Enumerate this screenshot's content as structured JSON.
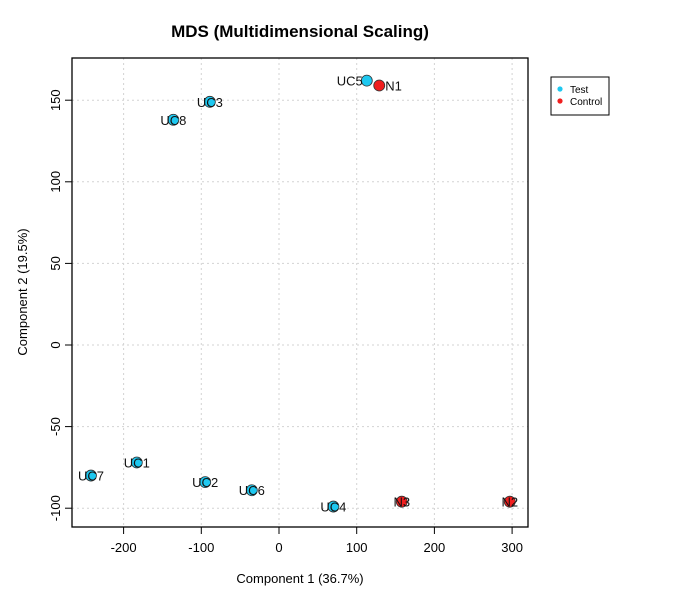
{
  "chart_data": {
    "type": "scatter",
    "title": "MDS (Multidimensional Scaling)",
    "xlabel": "Component 1 (36.7%)",
    "ylabel": "Component 2 (19.5%)",
    "xlim": [
      -265,
      320
    ],
    "ylim": [
      -110,
      177
    ],
    "xticks": [
      -200,
      -100,
      0,
      100,
      200,
      300
    ],
    "yticks": [
      -100,
      -50,
      0,
      50,
      100,
      150
    ],
    "grid": true,
    "legend": {
      "placement": "top-right, outside plot",
      "entries": [
        {
          "label": "Test",
          "color": "#1ec8f0"
        },
        {
          "label": "Control",
          "color": "#f01e1e"
        }
      ]
    },
    "points": [
      {
        "label": "UC5",
        "x": 113,
        "y": 162,
        "group": "Test"
      },
      {
        "label": "N1",
        "x": 129,
        "y": 159,
        "group": "Control"
      },
      {
        "label": "UC3",
        "x": -89,
        "y": 149,
        "group": "Test"
      },
      {
        "label": "UC8",
        "x": -136,
        "y": 138,
        "group": "Test"
      },
      {
        "label": "UC1",
        "x": -183,
        "y": -72,
        "group": "Test"
      },
      {
        "label": "UC7",
        "x": -242,
        "y": -80,
        "group": "Test"
      },
      {
        "label": "UC2",
        "x": -95,
        "y": -84,
        "group": "Test"
      },
      {
        "label": "UC6",
        "x": -35,
        "y": -89,
        "group": "Test"
      },
      {
        "label": "UC4",
        "x": 70,
        "y": -99,
        "group": "Test"
      },
      {
        "label": "N3",
        "x": 158,
        "y": -96,
        "group": "Control"
      },
      {
        "label": "N2",
        "x": 297,
        "y": -96,
        "group": "Control"
      }
    ]
  }
}
